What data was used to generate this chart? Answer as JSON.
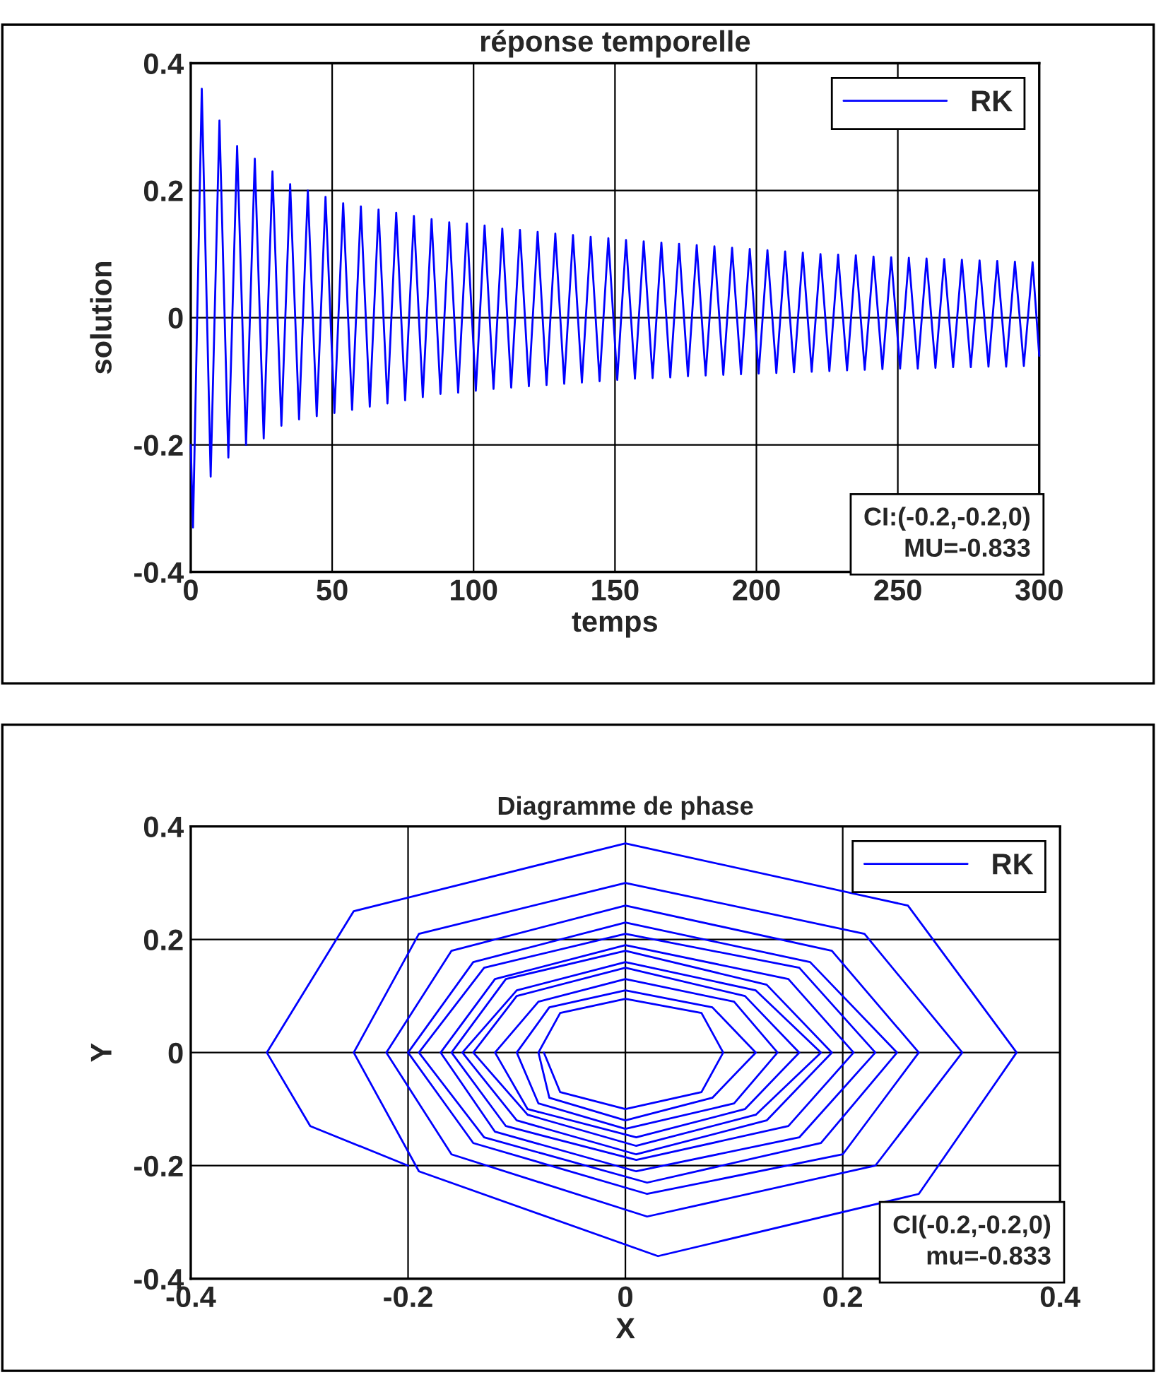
{
  "chart_data": [
    {
      "type": "line",
      "title": "réponse temporelle",
      "xlabel": "temps",
      "ylabel": "solution",
      "xlim": [
        0,
        300
      ],
      "xticks": [
        0,
        50,
        100,
        150,
        200,
        250,
        300
      ],
      "ylim": [
        -0.4,
        0.4
      ],
      "yticks": [
        -0.4,
        -0.2,
        0,
        0.2,
        0.4
      ],
      "grid": true,
      "legend": "top right",
      "annotations": [
        "CI:(-0.2,-0.2,0)\nMU=-0.833"
      ],
      "series": [
        {
          "name": "RK",
          "color": "#0000ff",
          "x": [
            0,
            0.8,
            3.9,
            7.05,
            10.15,
            13.3,
            16.4,
            19.55,
            22.65,
            25.8,
            28.9,
            32.05,
            35.15,
            38.3,
            41.4,
            44.55,
            47.65,
            50.8,
            53.9,
            57.05,
            60.15,
            63.3,
            66.4,
            69.55,
            72.65,
            75.8,
            78.9,
            82.05,
            85.15,
            88.3,
            91.4,
            94.55,
            97.65,
            100.8,
            103.9,
            107.05,
            110.15,
            113.3,
            116.4,
            119.55,
            122.65,
            125.8,
            128.9,
            132.05,
            135.15,
            138.3,
            141.4,
            144.55,
            147.65,
            150.8,
            153.9,
            157.05,
            160.15,
            163.3,
            166.4,
            169.55,
            172.65,
            175.8,
            178.9,
            182.05,
            185.15,
            188.3,
            191.4,
            194.55,
            197.65,
            200.8,
            203.9,
            207.05,
            210.15,
            213.3,
            216.4,
            219.55,
            222.65,
            225.8,
            228.9,
            232.05,
            235.15,
            238.3,
            241.4,
            244.55,
            247.65,
            250.8,
            253.9,
            257.05,
            260.15,
            263.3,
            266.4,
            269.55,
            272.65,
            275.8,
            278.9,
            282.05,
            285.15,
            288.3,
            291.4,
            294.55,
            297.65,
            300
          ],
          "values": [
            -0.2,
            -0.33,
            0.36,
            -0.25,
            0.31,
            -0.22,
            0.27,
            -0.2,
            0.25,
            -0.19,
            0.23,
            -0.17,
            0.21,
            -0.16,
            0.2,
            -0.155,
            0.19,
            -0.15,
            0.18,
            -0.145,
            0.175,
            -0.14,
            0.17,
            -0.135,
            0.165,
            -0.13,
            0.16,
            -0.125,
            0.155,
            -0.12,
            0.15,
            -0.118,
            0.148,
            -0.115,
            0.145,
            -0.112,
            0.14,
            -0.11,
            0.138,
            -0.108,
            0.135,
            -0.106,
            0.132,
            -0.104,
            0.13,
            -0.102,
            0.127,
            -0.1,
            0.125,
            -0.098,
            0.122,
            -0.096,
            0.12,
            -0.095,
            0.118,
            -0.094,
            0.116,
            -0.092,
            0.114,
            -0.091,
            0.112,
            -0.09,
            0.11,
            -0.089,
            0.108,
            -0.088,
            0.106,
            -0.087,
            0.104,
            -0.086,
            0.102,
            -0.085,
            0.1,
            -0.084,
            0.099,
            -0.083,
            0.098,
            -0.082,
            0.096,
            -0.081,
            0.095,
            -0.08,
            0.094,
            -0.08,
            0.093,
            -0.079,
            0.092,
            -0.078,
            0.091,
            -0.078,
            0.09,
            -0.077,
            0.089,
            -0.077,
            0.088,
            -0.076,
            0.087,
            -0.06
          ]
        }
      ]
    },
    {
      "type": "line",
      "title": "Diagramme de phase",
      "xlabel": "X",
      "ylabel": "Y",
      "xlim": [
        -0.4,
        0.4
      ],
      "xticks": [
        -0.4,
        -0.2,
        0,
        0.2,
        0.4
      ],
      "ylim": [
        -0.4,
        0.4
      ],
      "yticks": [
        -0.4,
        -0.2,
        0,
        0.2,
        0.4
      ],
      "grid": true,
      "legend": "top right",
      "annotations": [
        "CI(-0.2,-0.2,0)\nmu=-0.833"
      ],
      "series": [
        {
          "name": "RK",
          "color": "#0000ff",
          "x": [
            -0.2,
            -0.29,
            -0.33,
            -0.25,
            0,
            0.26,
            0.36,
            0.27,
            0.03,
            -0.19,
            -0.25,
            -0.19,
            0,
            0.22,
            0.31,
            0.23,
            0.02,
            -0.16,
            -0.22,
            -0.16,
            0,
            0.19,
            0.27,
            0.2,
            0.02,
            -0.14,
            -0.2,
            -0.14,
            0,
            0.17,
            0.25,
            0.18,
            0.02,
            -0.13,
            -0.19,
            -0.13,
            0,
            0.16,
            0.23,
            0.16,
            0.01,
            -0.12,
            -0.17,
            -0.12,
            0,
            0.15,
            0.21,
            0.15,
            0.01,
            -0.11,
            -0.16,
            -0.11,
            0,
            0.13,
            0.19,
            0.13,
            0.01,
            -0.1,
            -0.15,
            -0.1,
            0,
            0.12,
            0.18,
            0.12,
            0.01,
            -0.09,
            -0.14,
            -0.1,
            0,
            0.11,
            0.16,
            0.11,
            0.01,
            -0.09,
            -0.12,
            -0.08,
            0,
            0.1,
            0.14,
            0.1,
            0,
            -0.08,
            -0.1,
            -0.07,
            0,
            0.08,
            0.12,
            0.08,
            0,
            -0.07,
            -0.08,
            -0.06,
            0,
            0.07,
            0.09,
            0.07,
            0,
            -0.06,
            -0.075
          ],
          "values": [
            -0.2,
            -0.13,
            0,
            0.25,
            0.37,
            0.26,
            0,
            -0.25,
            -0.36,
            -0.21,
            0,
            0.21,
            0.3,
            0.21,
            0,
            -0.2,
            -0.29,
            -0.18,
            0,
            0.18,
            0.26,
            0.18,
            0,
            -0.18,
            -0.25,
            -0.16,
            0,
            0.16,
            0.23,
            0.16,
            0,
            -0.16,
            -0.23,
            -0.15,
            0,
            0.15,
            0.21,
            0.15,
            0,
            -0.15,
            -0.21,
            -0.14,
            0,
            0.13,
            0.19,
            0.13,
            0,
            -0.13,
            -0.19,
            -0.13,
            0,
            0.13,
            0.18,
            0.12,
            0,
            -0.12,
            -0.18,
            -0.12,
            0,
            0.11,
            0.16,
            0.11,
            0,
            -0.11,
            -0.165,
            -0.11,
            0,
            0.1,
            0.15,
            0.1,
            0,
            -0.1,
            -0.15,
            -0.1,
            0,
            0.09,
            0.13,
            0.09,
            0,
            -0.09,
            -0.135,
            -0.09,
            0,
            0.08,
            0.11,
            0.08,
            0,
            -0.08,
            -0.12,
            -0.08,
            0,
            0.07,
            0.095,
            0.07,
            0,
            -0.07,
            -0.1,
            -0.07,
            0
          ]
        }
      ]
    }
  ]
}
